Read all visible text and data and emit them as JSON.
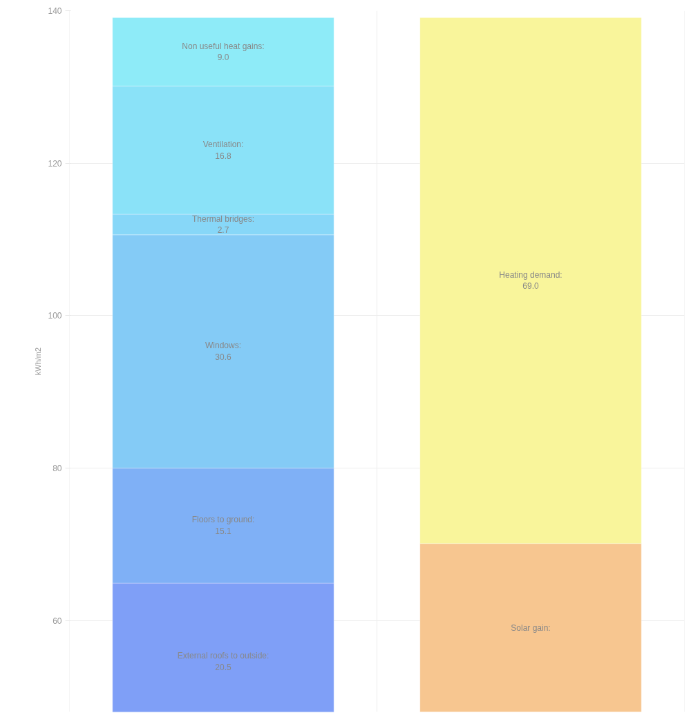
{
  "chart_data": {
    "type": "bar",
    "ylabel": "kWh/m2",
    "categories": [
      null,
      null
    ],
    "series": [
      {
        "name": "External roofs to outside:",
        "color": "#7f9ff7",
        "base": [
          44.4,
          null
        ],
        "values": [
          20.5,
          null
        ],
        "value_labels": [
          "20.5",
          null
        ]
      },
      {
        "name": "Floors to ground:",
        "color": "#7fb0f6",
        "base": [
          64.9,
          null
        ],
        "values": [
          15.1,
          null
        ],
        "value_labels": [
          "15.1",
          null
        ]
      },
      {
        "name": "Windows:",
        "color": "#84cbf6",
        "base": [
          80.0,
          null
        ],
        "values": [
          30.6,
          null
        ],
        "value_labels": [
          "30.6",
          null
        ]
      },
      {
        "name": "Thermal bridges:",
        "color": "#87d7f8",
        "base": [
          110.6,
          null
        ],
        "values": [
          2.7,
          null
        ],
        "value_labels": [
          "2.7",
          null
        ]
      },
      {
        "name": "Ventilation:",
        "color": "#8ae2f8",
        "base": [
          113.3,
          null
        ],
        "values": [
          16.8,
          null
        ],
        "value_labels": [
          "16.8",
          null
        ]
      },
      {
        "name": "Non useful heat gains:",
        "color": "#8eebf8",
        "base": [
          130.1,
          null
        ],
        "values": [
          9.0,
          null
        ],
        "value_labels": [
          "9.0",
          null
        ]
      },
      {
        "name": "Solar gain:",
        "color": "#f7c690",
        "base": [
          null,
          48
        ],
        "values": [
          null,
          22.1
        ],
        "value_labels": [
          null,
          null
        ]
      },
      {
        "name": "Heating demand:",
        "color": "#f9f59b",
        "base": [
          null,
          70.1
        ],
        "values": [
          null,
          69.0
        ],
        "value_labels": [
          null,
          "69.0"
        ]
      }
    ],
    "ylim": [
      48,
      140
    ],
    "yticks": [
      60,
      80,
      100,
      120,
      140
    ],
    "grid": true,
    "tick_labels": "y"
  }
}
